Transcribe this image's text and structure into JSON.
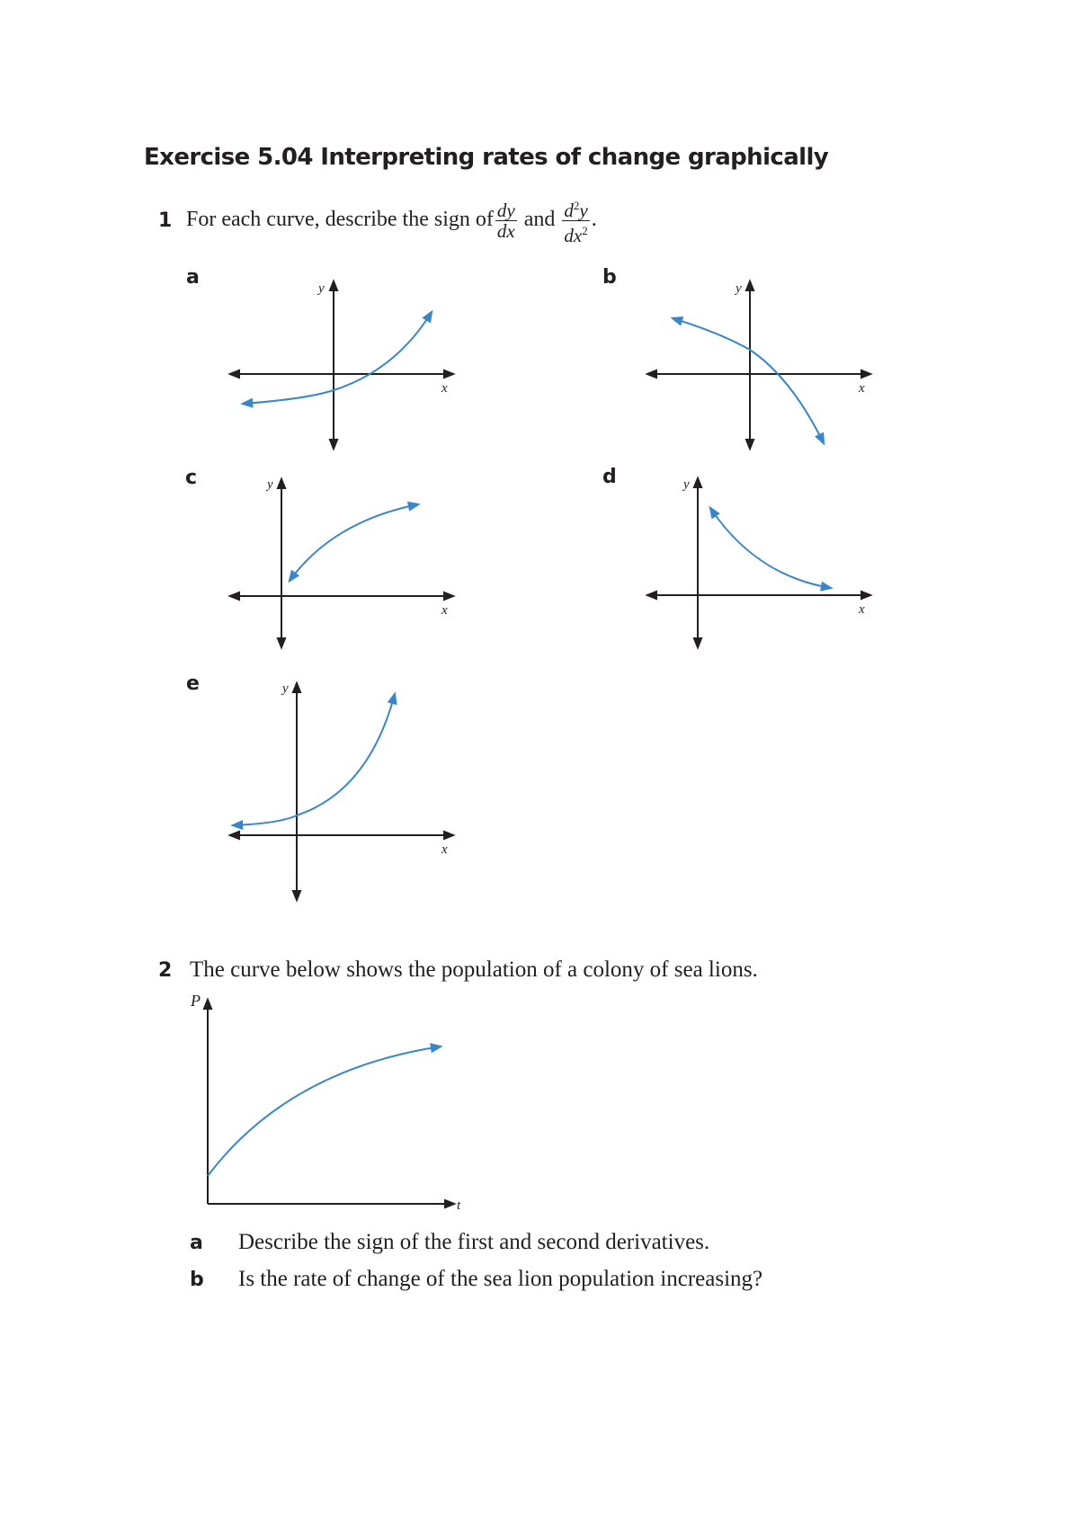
{
  "title": "Exercise 5.04 Interpreting rates of change graphically",
  "q1": {
    "number": "1",
    "text_before": "For each curve, describe the sign of",
    "frac1_num": "dy",
    "frac1_den": "dx",
    "and": "and",
    "frac2_num_base": "d",
    "frac2_num_sup": "2",
    "frac2_num_var": "y",
    "frac2_den_base": "dx",
    "frac2_den_sup": "2",
    "end": ".",
    "graphs": [
      {
        "label": "a",
        "x_axis": "x",
        "y_axis": "y"
      },
      {
        "label": "b",
        "x_axis": "x",
        "y_axis": "y"
      },
      {
        "label": "c",
        "x_axis": "x",
        "y_axis": "y"
      },
      {
        "label": "d",
        "x_axis": "x",
        "y_axis": "y"
      },
      {
        "label": "e",
        "x_axis": "x",
        "y_axis": "y"
      }
    ]
  },
  "q2": {
    "number": "2",
    "text": "The curve below shows the population of a colony of sea lions.",
    "graph": {
      "x_axis": "t",
      "y_axis": "P"
    },
    "parts": [
      {
        "label": "a",
        "text": "Describe the sign of the first and second derivatives."
      },
      {
        "label": "b",
        "text": "Is the rate of change of the sea lion population increasing?"
      }
    ]
  },
  "colors": {
    "curve": "#3b86c8",
    "axis": "#231f20"
  }
}
